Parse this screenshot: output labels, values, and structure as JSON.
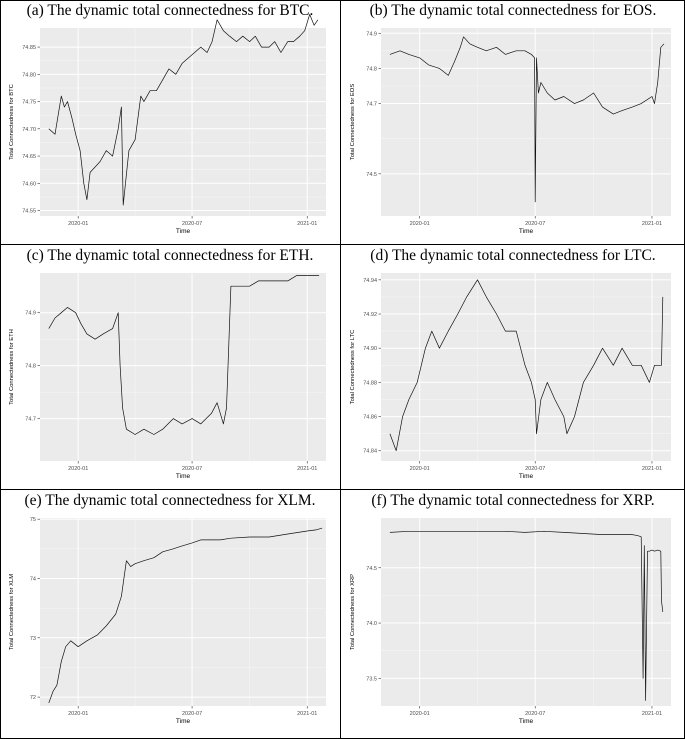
{
  "panels": [
    {
      "caption": "(a) The dynamic total connectedness for BTC.",
      "chart_data": {
        "type": "line",
        "xlabel": "Time",
        "ylabel": "Total Connectedness for BTC",
        "x_ticks": [
          "2020-01",
          "2020-07",
          "2021-01"
        ],
        "y_ticks": [
          "74.55",
          "74.60",
          "74.65",
          "74.70",
          "74.75",
          "74.80",
          "74.85"
        ],
        "y_tick_values": [
          74.55,
          74.6,
          74.65,
          74.7,
          74.75,
          74.8,
          74.85
        ],
        "ylim": [
          74.54,
          74.885
        ],
        "grid": true,
        "x": [
          "2019-11-15",
          "2019-11-25",
          "2019-12-05",
          "2019-12-10",
          "2019-12-15",
          "2019-12-22",
          "2019-12-28",
          "2020-01-04",
          "2020-01-10",
          "2020-01-15",
          "2020-01-20",
          "2020-01-28",
          "2020-02-05",
          "2020-02-15",
          "2020-02-25",
          "2020-03-05",
          "2020-03-10",
          "2020-03-13",
          "2020-03-22",
          "2020-04-01",
          "2020-04-10",
          "2020-04-15",
          "2020-04-25",
          "2020-05-05",
          "2020-05-15",
          "2020-05-25",
          "2020-06-05",
          "2020-06-15",
          "2020-06-25",
          "2020-07-05",
          "2020-07-15",
          "2020-07-25",
          "2020-08-02",
          "2020-08-10",
          "2020-08-20",
          "2020-08-30",
          "2020-09-10",
          "2020-09-20",
          "2020-10-01",
          "2020-10-10",
          "2020-10-20",
          "2020-11-01",
          "2020-11-10",
          "2020-11-20",
          "2020-12-01",
          "2020-12-10",
          "2020-12-20",
          "2020-12-28",
          "2021-01-05",
          "2021-01-12",
          "2021-01-18"
        ],
        "y": [
          74.7,
          74.69,
          74.76,
          74.74,
          74.75,
          74.72,
          74.69,
          74.66,
          74.6,
          74.57,
          74.62,
          74.63,
          74.64,
          74.66,
          74.65,
          74.7,
          74.74,
          74.56,
          74.66,
          74.68,
          74.76,
          74.75,
          74.77,
          74.77,
          74.79,
          74.81,
          74.8,
          74.82,
          74.83,
          74.84,
          74.85,
          74.84,
          74.86,
          74.9,
          74.88,
          74.87,
          74.86,
          74.87,
          74.86,
          74.87,
          74.85,
          74.85,
          74.86,
          74.84,
          74.86,
          74.86,
          74.87,
          74.88,
          74.91,
          74.89,
          74.9
        ]
      }
    },
    {
      "caption": "(b) The dynamic total connectedness for EOS.",
      "chart_data": {
        "type": "line",
        "xlabel": "Time",
        "ylabel": "Total Connectedness for EOS",
        "x_ticks": [
          "2020-01",
          "2020-07",
          "2021-01"
        ],
        "y_ticks": [
          "74.5",
          "74.7",
          "74.8",
          "74.9"
        ],
        "y_tick_values": [
          74.5,
          74.7,
          74.8,
          74.9
        ],
        "ylim": [
          74.38,
          74.915
        ],
        "grid": true,
        "x": [
          "2019-11-15",
          "2019-12-01",
          "2019-12-15",
          "2020-01-01",
          "2020-01-15",
          "2020-02-01",
          "2020-02-15",
          "2020-02-25",
          "2020-03-05",
          "2020-03-10",
          "2020-03-20",
          "2020-04-01",
          "2020-04-15",
          "2020-05-01",
          "2020-05-15",
          "2020-06-01",
          "2020-06-15",
          "2020-06-25",
          "2020-06-30",
          "2020-07-01",
          "2020-07-03",
          "2020-07-06",
          "2020-07-10",
          "2020-07-20",
          "2020-08-01",
          "2020-08-15",
          "2020-09-01",
          "2020-09-15",
          "2020-10-01",
          "2020-10-15",
          "2020-11-01",
          "2020-11-15",
          "2020-12-01",
          "2020-12-15",
          "2021-01-01",
          "2021-01-05",
          "2021-01-10",
          "2021-01-15",
          "2021-01-20"
        ],
        "y": [
          74.84,
          74.85,
          74.84,
          74.83,
          74.81,
          74.8,
          74.78,
          74.82,
          74.86,
          74.89,
          74.87,
          74.86,
          74.85,
          74.86,
          74.84,
          74.85,
          74.85,
          74.84,
          74.83,
          74.42,
          74.83,
          74.73,
          74.76,
          74.73,
          74.71,
          74.72,
          74.7,
          74.71,
          74.73,
          74.69,
          74.67,
          74.68,
          74.69,
          74.7,
          74.72,
          74.7,
          74.76,
          74.86,
          74.87
        ]
      }
    },
    {
      "caption": "(c) The dynamic total connectedness for ETH.",
      "chart_data": {
        "type": "line",
        "xlabel": "Time",
        "ylabel": "Total Connectedness for ETH",
        "x_ticks": [
          "2020-01",
          "2020-07",
          "2021-01"
        ],
        "y_ticks": [
          "74.7",
          "74.8",
          "74.9"
        ],
        "y_tick_values": [
          74.7,
          74.8,
          74.9
        ],
        "ylim": [
          74.62,
          74.975
        ],
        "grid": true,
        "x": [
          "2019-11-15",
          "2019-11-25",
          "2019-12-05",
          "2019-12-15",
          "2019-12-28",
          "2020-01-05",
          "2020-01-15",
          "2020-01-28",
          "2020-02-10",
          "2020-02-25",
          "2020-03-05",
          "2020-03-08",
          "2020-03-12",
          "2020-03-18",
          "2020-04-01",
          "2020-04-15",
          "2020-05-01",
          "2020-05-15",
          "2020-06-01",
          "2020-06-15",
          "2020-07-01",
          "2020-07-15",
          "2020-08-01",
          "2020-08-10",
          "2020-08-20",
          "2020-08-25",
          "2020-09-01",
          "2020-09-15",
          "2020-10-01",
          "2020-10-15",
          "2020-11-01",
          "2020-11-15",
          "2020-12-01",
          "2020-12-15",
          "2021-01-01",
          "2021-01-10",
          "2021-01-20"
        ],
        "y": [
          74.87,
          74.89,
          74.9,
          74.91,
          74.9,
          74.88,
          74.86,
          74.85,
          74.86,
          74.87,
          74.9,
          74.8,
          74.72,
          74.68,
          74.67,
          74.68,
          74.67,
          74.68,
          74.7,
          74.69,
          74.7,
          74.69,
          74.71,
          74.73,
          74.69,
          74.72,
          74.95,
          74.95,
          74.95,
          74.96,
          74.96,
          74.96,
          74.96,
          74.97,
          74.97,
          74.97,
          74.97
        ]
      }
    },
    {
      "caption": "(d) The dynamic total connectedness for LTC.",
      "chart_data": {
        "type": "line",
        "xlabel": "Time",
        "ylabel": "Total Connectedness for LTC",
        "x_ticks": [
          "2020-01",
          "2020-07",
          "2021-01"
        ],
        "y_ticks": [
          "74.84",
          "74.86",
          "74.88",
          "74.90",
          "74.92",
          "74.94"
        ],
        "y_tick_values": [
          74.84,
          74.86,
          74.88,
          74.9,
          74.92,
          74.94
        ],
        "ylim": [
          74.834,
          74.944
        ],
        "grid": true,
        "x": [
          "2019-11-15",
          "2019-11-25",
          "2019-12-05",
          "2019-12-15",
          "2019-12-28",
          "2020-01-10",
          "2020-01-20",
          "2020-02-01",
          "2020-02-15",
          "2020-03-01",
          "2020-03-15",
          "2020-04-01",
          "2020-04-15",
          "2020-05-01",
          "2020-05-15",
          "2020-06-01",
          "2020-06-15",
          "2020-06-25",
          "2020-07-01",
          "2020-07-03",
          "2020-07-10",
          "2020-07-20",
          "2020-08-01",
          "2020-08-15",
          "2020-08-20",
          "2020-09-01",
          "2020-09-15",
          "2020-10-01",
          "2020-10-15",
          "2020-11-01",
          "2020-11-15",
          "2020-12-01",
          "2020-12-15",
          "2020-12-28",
          "2021-01-05",
          "2021-01-12",
          "2021-01-16",
          "2021-01-18"
        ],
        "y": [
          74.85,
          74.84,
          74.86,
          74.87,
          74.88,
          74.9,
          74.91,
          74.9,
          74.91,
          74.92,
          74.93,
          74.94,
          74.93,
          74.92,
          74.91,
          74.91,
          74.89,
          74.88,
          74.87,
          74.85,
          74.87,
          74.88,
          74.87,
          74.86,
          74.85,
          74.86,
          74.88,
          74.89,
          74.9,
          74.89,
          74.9,
          74.89,
          74.89,
          74.88,
          74.89,
          74.89,
          74.89,
          74.93
        ]
      }
    },
    {
      "caption": "(e) The dynamic total connectedness for XLM.",
      "chart_data": {
        "type": "line",
        "xlabel": "Time",
        "ylabel": "Total Connectedness for XLM",
        "x_ticks": [
          "2020-01",
          "2020-07",
          "2021-01"
        ],
        "y_ticks": [
          "72",
          "73",
          "74",
          "75"
        ],
        "y_tick_values": [
          72,
          73,
          74,
          75
        ],
        "ylim": [
          71.85,
          75.02
        ],
        "grid": true,
        "x": [
          "2019-11-15",
          "2019-11-22",
          "2019-11-28",
          "2019-12-05",
          "2019-12-12",
          "2019-12-20",
          "2020-01-01",
          "2020-01-15",
          "2020-02-01",
          "2020-02-15",
          "2020-03-01",
          "2020-03-10",
          "2020-03-18",
          "2020-03-25",
          "2020-04-01",
          "2020-04-15",
          "2020-05-01",
          "2020-05-15",
          "2020-06-01",
          "2020-06-15",
          "2020-07-01",
          "2020-07-15",
          "2020-08-01",
          "2020-08-15",
          "2020-09-01",
          "2020-10-01",
          "2020-11-01",
          "2020-12-01",
          "2021-01-01",
          "2021-01-15",
          "2021-01-25"
        ],
        "y": [
          71.9,
          72.1,
          72.2,
          72.6,
          72.85,
          72.95,
          72.85,
          72.95,
          73.05,
          73.2,
          73.4,
          73.7,
          74.3,
          74.2,
          74.25,
          74.3,
          74.35,
          74.45,
          74.5,
          74.55,
          74.6,
          74.65,
          74.65,
          74.65,
          74.68,
          74.7,
          74.7,
          74.75,
          74.8,
          74.82,
          74.85
        ]
      }
    },
    {
      "caption": "(f) The dynamic total connectedness for XRP.",
      "chart_data": {
        "type": "line",
        "xlabel": "Time",
        "ylabel": "Total Connectedness for XRP",
        "x_ticks": [
          "2020-01",
          "2020-07",
          "2021-01"
        ],
        "y_ticks": [
          "73.5",
          "74.0",
          "74.5"
        ],
        "y_tick_values": [
          73.5,
          74.0,
          74.5
        ],
        "ylim": [
          73.25,
          74.95
        ],
        "grid": true,
        "x": [
          "2019-11-15",
          "2019-12-15",
          "2020-01-15",
          "2020-02-15",
          "2020-03-15",
          "2020-04-15",
          "2020-05-15",
          "2020-06-15",
          "2020-07-15",
          "2020-08-15",
          "2020-09-15",
          "2020-10-15",
          "2020-11-15",
          "2020-12-01",
          "2020-12-10",
          "2020-12-15",
          "2020-12-18",
          "2020-12-20",
          "2020-12-22",
          "2020-12-25",
          "2020-12-28",
          "2021-01-01",
          "2021-01-05",
          "2021-01-10",
          "2021-01-15",
          "2021-01-16",
          "2021-01-18"
        ],
        "y": [
          74.82,
          74.83,
          74.83,
          74.83,
          74.83,
          74.83,
          74.83,
          74.82,
          74.83,
          74.82,
          74.81,
          74.8,
          74.8,
          74.8,
          74.79,
          74.78,
          73.5,
          74.7,
          73.3,
          74.65,
          74.65,
          74.66,
          74.65,
          74.66,
          74.65,
          74.2,
          74.1
        ]
      }
    }
  ]
}
